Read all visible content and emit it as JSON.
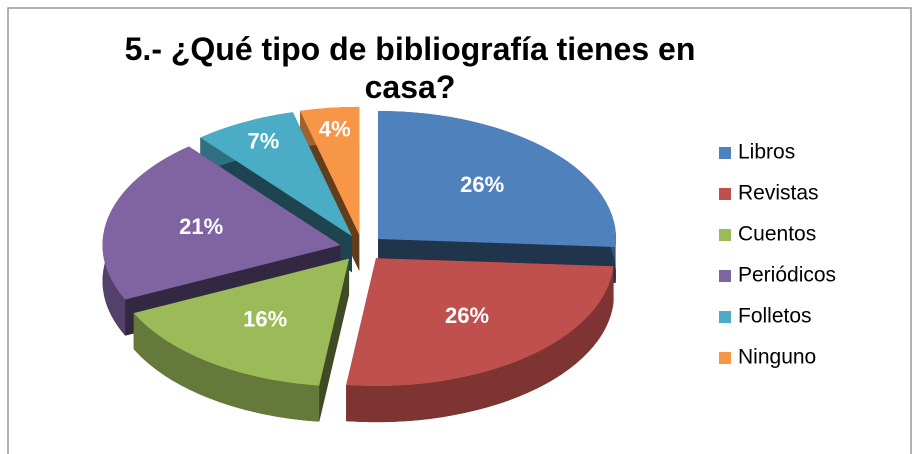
{
  "chart_data": {
    "type": "pie",
    "title": "5.- ¿Qué tipo de bibliografía tienes en casa?",
    "categories": [
      "Libros",
      "Revistas",
      "Cuentos",
      "Periódicos",
      "Folletos",
      "Ninguno"
    ],
    "values": [
      26,
      26,
      16,
      21,
      7,
      4
    ],
    "value_labels": [
      "26%",
      "26%",
      "16%",
      "21%",
      "7%",
      "4%"
    ],
    "colors": [
      "#4f81bd",
      "#c0504d",
      "#9bbb59",
      "#8064a2",
      "#4bacc6",
      "#f79646"
    ],
    "legend": "right"
  }
}
